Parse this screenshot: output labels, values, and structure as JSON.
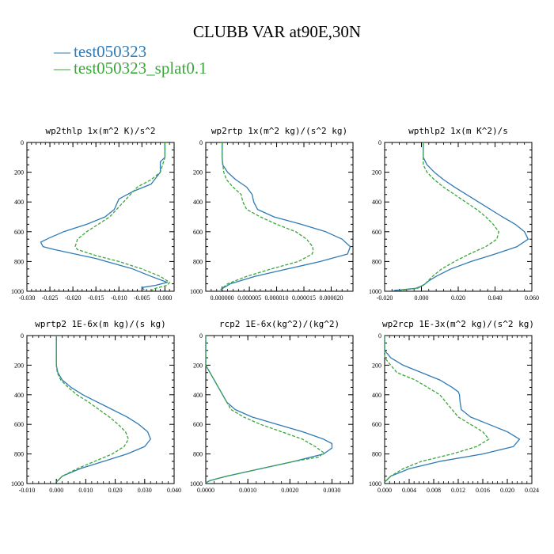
{
  "title": "CLUBB VAR at90E,30N",
  "legend": [
    {
      "label": "test050323",
      "color": "#2e7bb6"
    },
    {
      "label": "test050323_splat0.1",
      "color": "#3aa63a"
    }
  ],
  "chart_data": [
    {
      "type": "line",
      "title": "wp2thlp  1x(m^2 K)/s^2",
      "xlim": [
        -0.03,
        0.002
      ],
      "xticks": [
        -0.03,
        -0.025,
        -0.02,
        -0.015,
        -0.01,
        -0.005,
        0.0
      ],
      "xtick_labels": [
        "-0.030",
        "-0.025",
        "-0.020",
        "-0.015",
        "-0.010",
        "-0.005",
        "0.000"
      ],
      "ylim": [
        1000,
        0
      ],
      "yticks": [
        0,
        200,
        400,
        600,
        800,
        1000
      ],
      "series": [
        {
          "name": "test050323",
          "color": "#2e7bb6",
          "dashed": false,
          "y": [
            0,
            100,
            130,
            200,
            280,
            330,
            380,
            450,
            500,
            550,
            600,
            640,
            670,
            700,
            720,
            780,
            850,
            900,
            940,
            960,
            975,
            990
          ],
          "x": [
            0.0,
            0.0,
            -0.001,
            -0.001,
            -0.003,
            -0.007,
            -0.01,
            -0.011,
            -0.013,
            -0.017,
            -0.022,
            -0.025,
            -0.027,
            -0.0265,
            -0.024,
            -0.015,
            -0.007,
            -0.003,
            0.0005,
            -0.002,
            -0.005,
            -0.0045
          ]
        },
        {
          "name": "test050323_splat0.1",
          "color": "#3aa63a",
          "dashed": true,
          "y": [
            0,
            100,
            200,
            250,
            300,
            400,
            500,
            600,
            650,
            700,
            720,
            760,
            800,
            850,
            900,
            940,
            960,
            980,
            995
          ],
          "x": [
            0.0,
            0.0,
            -0.001,
            -0.003,
            -0.006,
            -0.009,
            -0.012,
            -0.017,
            -0.019,
            -0.0195,
            -0.019,
            -0.015,
            -0.01,
            -0.005,
            -0.001,
            0.001,
            0.0005,
            -0.002,
            -0.003
          ]
        }
      ]
    },
    {
      "type": "line",
      "title": "wp2rtp  1x(m^2 kg)/(s^2 kg)",
      "xlim": [
        -3e-06,
        2.4e-05
      ],
      "xticks": [
        0.0,
        5e-06,
        1e-05,
        1.5e-05,
        2e-05
      ],
      "xtick_labels": [
        "0.000000",
        "0.000005",
        "0.000010",
        "0.000015",
        "0.000020"
      ],
      "ylim": [
        1000,
        0
      ],
      "yticks": [
        0,
        200,
        400,
        600,
        800,
        1000
      ],
      "series": [
        {
          "name": "test050323",
          "color": "#2e7bb6",
          "dashed": false,
          "y": [
            0,
            100,
            150,
            200,
            250,
            300,
            350,
            400,
            450,
            500,
            550,
            600,
            650,
            700,
            750,
            800,
            850,
            900,
            950,
            990
          ],
          "x": [
            0.0,
            0.0,
            1e-07,
            1e-06,
            2.5e-06,
            4.5e-06,
            5.5e-06,
            5.8e-06,
            6.5e-06,
            9.5e-06,
            1.45e-05,
            1.9e-05,
            2.2e-05,
            2.35e-05,
            2.3e-05,
            1.8e-05,
            1.2e-05,
            6e-06,
            1.5e-06,
            -3e-07
          ]
        },
        {
          "name": "test050323_splat0.1",
          "color": "#3aa63a",
          "dashed": true,
          "y": [
            0,
            100,
            200,
            250,
            300,
            350,
            400,
            450,
            500,
            550,
            600,
            650,
            700,
            730,
            750,
            800,
            850,
            900,
            950,
            990
          ],
          "x": [
            0.0,
            0.0,
            3e-07,
            8e-07,
            2e-06,
            3.5e-06,
            3.8e-06,
            4.5e-06,
            7e-06,
            1e-05,
            1.35e-05,
            1.55e-05,
            1.66e-05,
            1.67e-05,
            1.65e-05,
            1.4e-05,
            9e-06,
            4.5e-06,
            1e-06,
            -3e-07
          ]
        }
      ]
    },
    {
      "type": "line",
      "title": "wpthlp2  1x(m K^2)/s",
      "xlim": [
        -0.02,
        0.06
      ],
      "xticks": [
        -0.02,
        0.0,
        0.02,
        0.04,
        0.06
      ],
      "xtick_labels": [
        "-0.020",
        "0.000",
        "0.020",
        "0.040",
        "0.060"
      ],
      "ylim": [
        1000,
        0
      ],
      "yticks": [
        0,
        200,
        400,
        600,
        800,
        1000
      ],
      "series": [
        {
          "name": "test050323",
          "color": "#2e7bb6",
          "dashed": false,
          "y": [
            0,
            100,
            150,
            200,
            250,
            300,
            400,
            500,
            550,
            600,
            650,
            700,
            750,
            800,
            850,
            900,
            930,
            960,
            980,
            995
          ],
          "x": [
            0.001,
            0.001,
            0.003,
            0.007,
            0.012,
            0.018,
            0.031,
            0.044,
            0.051,
            0.056,
            0.058,
            0.052,
            0.04,
            0.027,
            0.016,
            0.008,
            0.004,
            0.001,
            -0.003,
            -0.015
          ]
        },
        {
          "name": "test050323_splat0.1",
          "color": "#3aa63a",
          "dashed": true,
          "y": [
            0,
            100,
            150,
            200,
            250,
            300,
            350,
            400,
            450,
            500,
            550,
            600,
            650,
            700,
            750,
            800,
            850,
            900,
            950,
            980,
            995
          ],
          "x": [
            0.001,
            0.001,
            0.001,
            0.003,
            0.007,
            0.012,
            0.018,
            0.024,
            0.03,
            0.035,
            0.039,
            0.042,
            0.041,
            0.035,
            0.026,
            0.018,
            0.011,
            0.006,
            0.002,
            -0.002,
            -0.012
          ]
        }
      ]
    },
    {
      "type": "line",
      "title": "wprtp2  1E-6x(m kg)/(s kg)",
      "xlim": [
        -0.01,
        0.04
      ],
      "xticks": [
        -0.01,
        0.0,
        0.01,
        0.02,
        0.03,
        0.04
      ],
      "xtick_labels": [
        "-0.010",
        "0.000",
        "0.010",
        "0.020",
        "0.030",
        "0.040"
      ],
      "ylim": [
        1000,
        0
      ],
      "yticks": [
        0,
        200,
        400,
        600,
        800,
        1000
      ],
      "series": [
        {
          "name": "test050323",
          "color": "#2e7bb6",
          "dashed": false,
          "y": [
            0,
            100,
            200,
            250,
            300,
            350,
            400,
            450,
            500,
            550,
            600,
            650,
            700,
            750,
            800,
            850,
            900,
            950,
            990
          ],
          "x": [
            0.0,
            0.0,
            0.0,
            0.0005,
            0.002,
            0.005,
            0.009,
            0.014,
            0.019,
            0.024,
            0.028,
            0.031,
            0.032,
            0.03,
            0.024,
            0.016,
            0.008,
            0.002,
            0.0
          ]
        },
        {
          "name": "test050323_splat0.1",
          "color": "#3aa63a",
          "dashed": true,
          "y": [
            0,
            100,
            200,
            250,
            300,
            350,
            400,
            450,
            500,
            550,
            600,
            650,
            700,
            750,
            800,
            850,
            900,
            950,
            990
          ],
          "x": [
            0.0,
            0.0,
            0.0,
            0.0003,
            0.0015,
            0.004,
            0.007,
            0.011,
            0.0145,
            0.018,
            0.021,
            0.0235,
            0.0245,
            0.023,
            0.019,
            0.013,
            0.007,
            0.002,
            0.0
          ]
        }
      ]
    },
    {
      "type": "line",
      "title": "rcp2  1E-6x(kg^2)/(kg^2)",
      "xlim": [
        0.0,
        0.0035
      ],
      "xticks": [
        0.0,
        0.001,
        0.002,
        0.003
      ],
      "xtick_labels": [
        "0.0000",
        "0.0010",
        "0.0020",
        "0.0030"
      ],
      "ylim": [
        1000,
        0
      ],
      "yticks": [
        0,
        200,
        400,
        600,
        800,
        1000
      ],
      "series": [
        {
          "name": "test050323",
          "color": "#2e7bb6",
          "dashed": false,
          "y": [
            0,
            100,
            200,
            250,
            300,
            350,
            400,
            450,
            500,
            550,
            600,
            650,
            700,
            730,
            760,
            800,
            850,
            900,
            950,
            980,
            995
          ],
          "x": [
            0.0,
            0.0,
            0.0,
            0.0001,
            0.0002,
            0.0003,
            0.0004,
            0.0005,
            0.0007,
            0.0011,
            0.0017,
            0.0023,
            0.0028,
            0.003,
            0.003,
            0.0028,
            0.0021,
            0.0013,
            0.0005,
            0.0001,
            0.0
          ]
        },
        {
          "name": "test050323_splat0.1",
          "color": "#3aa63a",
          "dashed": true,
          "y": [
            0,
            100,
            200,
            250,
            300,
            350,
            400,
            450,
            500,
            550,
            600,
            650,
            700,
            750,
            790,
            820,
            850,
            900,
            950,
            980,
            995
          ],
          "x": [
            0.0,
            0.0,
            0.0,
            0.0001,
            0.0002,
            0.0003,
            0.0004,
            0.0005,
            0.0006,
            0.0009,
            0.0013,
            0.0018,
            0.0023,
            0.0026,
            0.0028,
            0.0027,
            0.0021,
            0.0013,
            0.0005,
            0.0001,
            0.0
          ]
        }
      ]
    },
    {
      "type": "line",
      "title": "wp2rcp  1E-3x(m^2 kg)/(s^2 kg)",
      "xlim": [
        0.0,
        0.024
      ],
      "xticks": [
        0.0,
        0.004,
        0.008,
        0.012,
        0.016,
        0.02,
        0.024
      ],
      "xtick_labels": [
        "0.000",
        "0.004",
        "0.008",
        "0.012",
        "0.016",
        "0.020",
        "0.024"
      ],
      "ylim": [
        1000,
        0
      ],
      "yticks": [
        0,
        200,
        400,
        600,
        800,
        1000
      ],
      "series": [
        {
          "name": "test050323",
          "color": "#2e7bb6",
          "dashed": false,
          "y": [
            0,
            100,
            150,
            200,
            250,
            300,
            350,
            380,
            400,
            450,
            500,
            550,
            600,
            650,
            700,
            750,
            800,
            850,
            900,
            950,
            990
          ],
          "x": [
            0.0,
            0.0,
            0.001,
            0.003,
            0.006,
            0.009,
            0.011,
            0.012,
            0.0122,
            0.0123,
            0.0125,
            0.014,
            0.017,
            0.02,
            0.022,
            0.021,
            0.016,
            0.009,
            0.004,
            0.001,
            0.0
          ]
        },
        {
          "name": "test050323_splat0.1",
          "color": "#3aa63a",
          "dashed": true,
          "y": [
            0,
            100,
            150,
            200,
            250,
            300,
            350,
            400,
            450,
            500,
            550,
            600,
            650,
            700,
            750,
            800,
            850,
            900,
            950,
            990
          ],
          "x": [
            0.0,
            0.0,
            0.0,
            0.001,
            0.002,
            0.005,
            0.007,
            0.009,
            0.01,
            0.011,
            0.012,
            0.014,
            0.016,
            0.017,
            0.015,
            0.011,
            0.006,
            0.003,
            0.001,
            0.0
          ]
        }
      ]
    }
  ]
}
